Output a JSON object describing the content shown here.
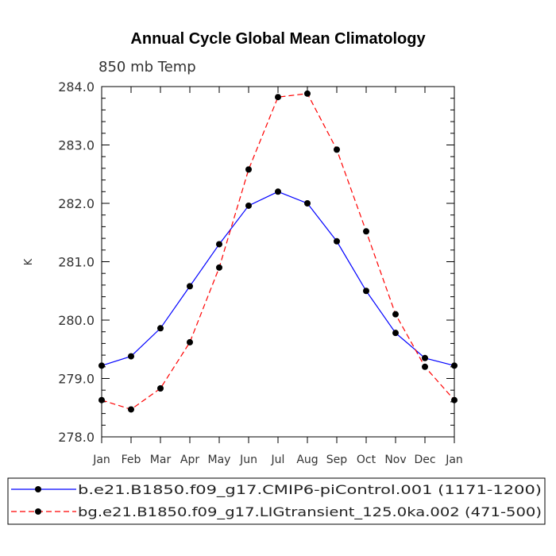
{
  "chart_data": {
    "type": "line",
    "title": "Annual Cycle Global Mean Climatology",
    "subtitle": "850 mb Temp",
    "ylabel": "K",
    "xlabel": "",
    "categories": [
      "Jan",
      "Feb",
      "Mar",
      "Apr",
      "May",
      "Jun",
      "Jul",
      "Aug",
      "Sep",
      "Oct",
      "Nov",
      "Dec",
      "Jan"
    ],
    "ylim": [
      278.0,
      284.0
    ],
    "yticks": [
      "278.0",
      "279.0",
      "280.0",
      "281.0",
      "282.0",
      "283.0",
      "284.0"
    ],
    "grid": false,
    "legend_position": "bottom",
    "series": [
      {
        "name": "b.e21.B1850.f09_g17.CMIP6-piControl.001 (1171-1200)",
        "color": "#0000ff",
        "dash": "solid",
        "values": [
          279.22,
          279.38,
          279.86,
          280.58,
          281.3,
          281.96,
          282.2,
          282.0,
          281.35,
          280.5,
          279.78,
          279.35,
          279.22
        ]
      },
      {
        "name": "bg.e21.B1850.f09_g17.LIGtransient_125.0ka.002 (471-500)",
        "color": "#ff0000",
        "dash": "dashed",
        "values": [
          278.63,
          278.47,
          278.83,
          279.62,
          280.9,
          282.58,
          283.82,
          283.88,
          282.92,
          281.52,
          280.1,
          279.2,
          278.63
        ]
      }
    ]
  }
}
